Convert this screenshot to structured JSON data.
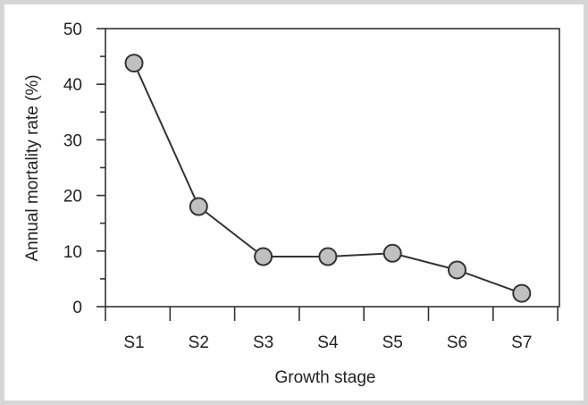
{
  "chart_data": {
    "type": "line",
    "title": "",
    "xlabel": "Growth stage",
    "ylabel": "Annual mortality rate (%)",
    "categories": [
      "S1",
      "S2",
      "S3",
      "S4",
      "S5",
      "S6",
      "S7"
    ],
    "series": [
      {
        "values": [
          43.8,
          18.0,
          9.0,
          9.0,
          9.6,
          6.6,
          2.4
        ]
      }
    ],
    "ylim": [
      0,
      50
    ],
    "yticks": [
      "0",
      "10",
      "20",
      "30",
      "40",
      "50"
    ],
    "grid": false,
    "legend": "none",
    "colors": {
      "line": "#333333",
      "marker_fill": "#c0c0c0",
      "marker_stroke": "#333333"
    }
  }
}
